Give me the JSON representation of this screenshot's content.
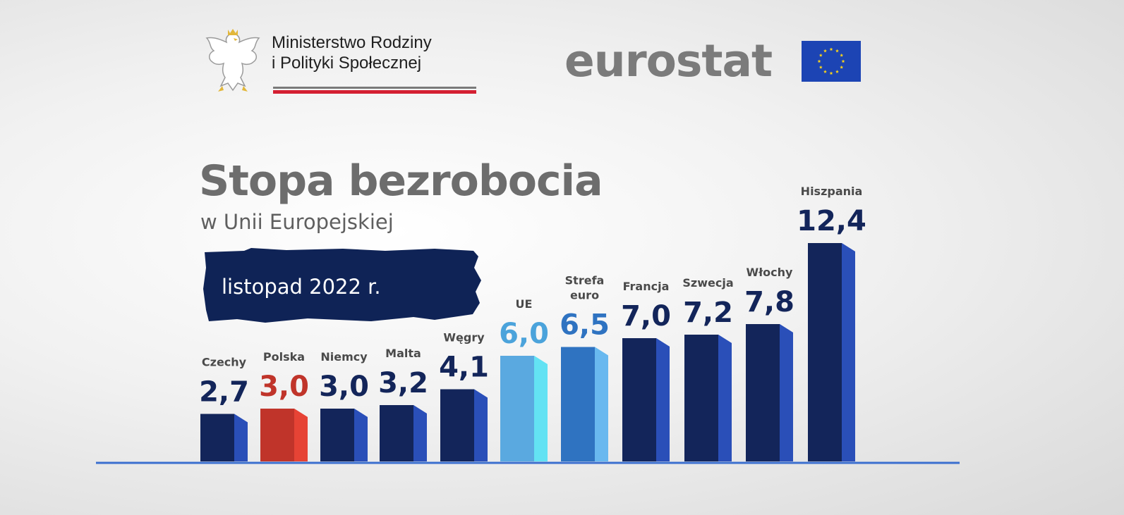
{
  "header": {
    "ministry_line1": "Ministerstwo Rodziny",
    "ministry_line2": "i Polityki Społecznej",
    "eurostat": "eurostat"
  },
  "title": "Stopa bezrobocia",
  "subtitle": "w Unii Europejskiej",
  "date": "listopad 2022 r.",
  "colors": {
    "navy": "#13255a",
    "navy_side": "#2a4fb8",
    "poland": "#c0342a",
    "poland_side": "#e64335",
    "eu": "#5aa9e0",
    "eu_side": "#63e2f3",
    "euro": "#2f73c1",
    "euro_side": "#69b8ef",
    "label_navy": "#13255a",
    "label_red": "#c0342a",
    "label_light": "#4ba3db",
    "label_mid": "#2f73c1"
  },
  "chart_data": {
    "type": "bar",
    "title": "Stopa bezrobocia",
    "subtitle": "w Unii Europejskiej",
    "period": "listopad 2022 r.",
    "categories": [
      "Czechy",
      "Polska",
      "Niemcy",
      "Malta",
      "Węgry",
      "UE",
      "Strefa euro",
      "Francja",
      "Szwecja",
      "Włochy",
      "Hiszpania"
    ],
    "values": [
      2.7,
      3.0,
      3.0,
      3.2,
      4.1,
      6.0,
      6.5,
      7.0,
      7.2,
      7.8,
      12.4
    ],
    "value_labels": [
      "2,7",
      "3,0",
      "3,0",
      "3,2",
      "4,1",
      "6,0",
      "6,5",
      "7,0",
      "7,2",
      "7,8",
      "12,4"
    ],
    "highlight": {
      "Polska": "poland",
      "UE": "eu",
      "Strefa euro": "euro"
    },
    "unit": "%",
    "ylim": [
      0,
      12.4
    ],
    "grid": false,
    "legend": "none"
  }
}
